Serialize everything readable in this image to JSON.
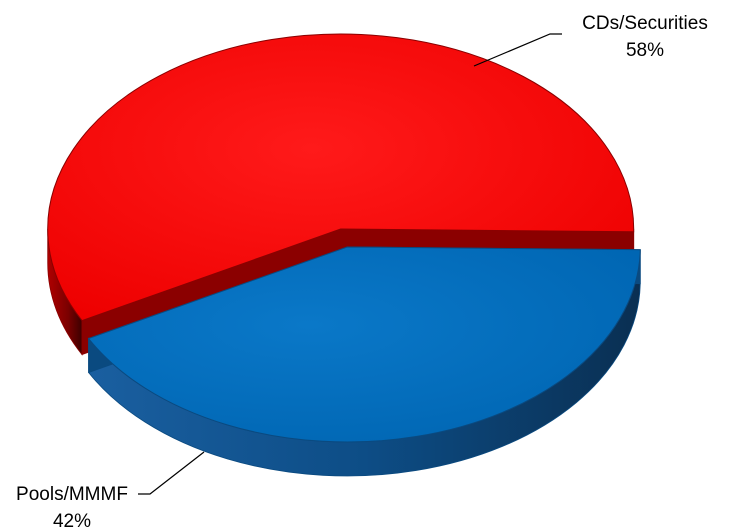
{
  "chart_data": {
    "type": "pie",
    "style": "3d-exploded",
    "slices": [
      {
        "label": "CDs/Securities",
        "value": 58,
        "value_label": "58%",
        "color": "#ff0000",
        "side_color": "#8b0000"
      },
      {
        "label": "Pools/MMMF",
        "value": 42,
        "value_label": "42%",
        "color": "#0070c0",
        "side_color": "#0a4a80"
      }
    ],
    "legend": "none",
    "label_style": "outside-with-leader-lines"
  }
}
